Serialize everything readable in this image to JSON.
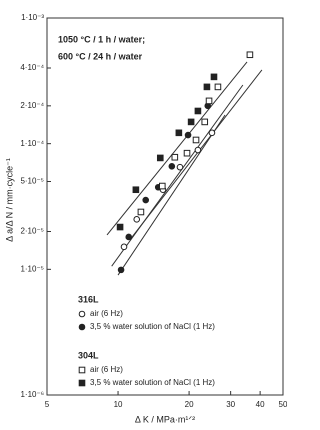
{
  "chart_data": {
    "type": "scatter",
    "annotations": [
      "1050 °C / 1 h / water;",
      "600 °C / 24 h / water"
    ],
    "x_label": "Δ K / MPa·m¹ᐟ²",
    "y_label": "Δ a/Δ N / mm·cycle⁻¹",
    "log_x": true,
    "log_y": true,
    "xlim": [
      5,
      50
    ],
    "xticks": [
      5,
      10,
      20,
      30,
      40,
      50
    ],
    "ylim": [
      1e-06,
      0.001
    ],
    "yticks": [
      {
        "value": 0.001,
        "label": "1·10⁻³"
      },
      {
        "value": 0.0004,
        "label": "4·10⁻⁴"
      },
      {
        "value": 0.0002,
        "label": "2·10⁻⁴"
      },
      {
        "value": 0.0001,
        "label": "1·10⁻⁴"
      },
      {
        "value": 5e-05,
        "label": "5·10⁻⁵"
      },
      {
        "value": 2e-05,
        "label": "2·10⁻⁵"
      },
      {
        "value": 1e-05,
        "label": "1·10⁻⁵"
      },
      {
        "value": 1e-06,
        "label": "1·10⁻⁶"
      }
    ],
    "legend_groups": [
      "316L",
      "304L"
    ],
    "series": [
      {
        "group": 0,
        "name": "air (6 Hz)",
        "marker": "circle",
        "filled": false,
        "color": "#222",
        "x": [
          10.6,
          12.0,
          15.5,
          18.3,
          21.8,
          25.0
        ],
        "values": [
          1.51e-05,
          2.5e-05,
          4.3e-05,
          6.5e-05,
          8.9e-05,
          0.000122
        ]
      },
      {
        "group": 0,
        "name": "3,5 % water solution of NaCl (1 Hz)",
        "marker": "circle",
        "filled": true,
        "color": "#222",
        "x": [
          10.3,
          11.1,
          13.1,
          14.8,
          16.9,
          19.8,
          24.0
        ],
        "values": [
          9.9e-06,
          1.81e-05,
          3.56e-05,
          4.5e-05,
          6.6e-05,
          0.000117,
          0.0002
        ]
      },
      {
        "group": 1,
        "name": "air (6 Hz)",
        "marker": "square",
        "filled": false,
        "color": "#222",
        "x": [
          12.5,
          15.4,
          17.4,
          19.6,
          21.4,
          23.3,
          24.3,
          26.5,
          36.2
        ],
        "values": [
          2.86e-05,
          4.6e-05,
          7.8e-05,
          8.4e-05,
          0.000107,
          0.000149,
          0.000219,
          0.000283,
          0.00051
        ]
      },
      {
        "group": 1,
        "name": "3,5 % water solution of NaCl (1 Hz)",
        "marker": "square",
        "filled": true,
        "color": "#222",
        "x": [
          10.2,
          11.9,
          15.1,
          18.1,
          20.4,
          21.8,
          23.8,
          25.5
        ],
        "values": [
          2.17e-05,
          4.3e-05,
          7.7e-05,
          0.000122,
          0.000149,
          0.000182,
          0.000283,
          0.00034
        ]
      }
    ],
    "fit_lines": [
      {
        "x": [
          8.98,
          35.2
        ],
        "values": [
          1.88e-05,
          0.000447
        ]
      },
      {
        "x": [
          9.4,
          33.8
        ],
        "values": [
          1.06e-05,
          0.000293
        ]
      },
      {
        "x": [
          11.2,
          40.7
        ],
        "values": [
          1.71e-05,
          0.000386
        ]
      },
      {
        "x": [
          10.0,
          28.4
        ],
        "values": [
          9e-06,
          0.000169
        ]
      }
    ],
    "line_color": "#333"
  }
}
